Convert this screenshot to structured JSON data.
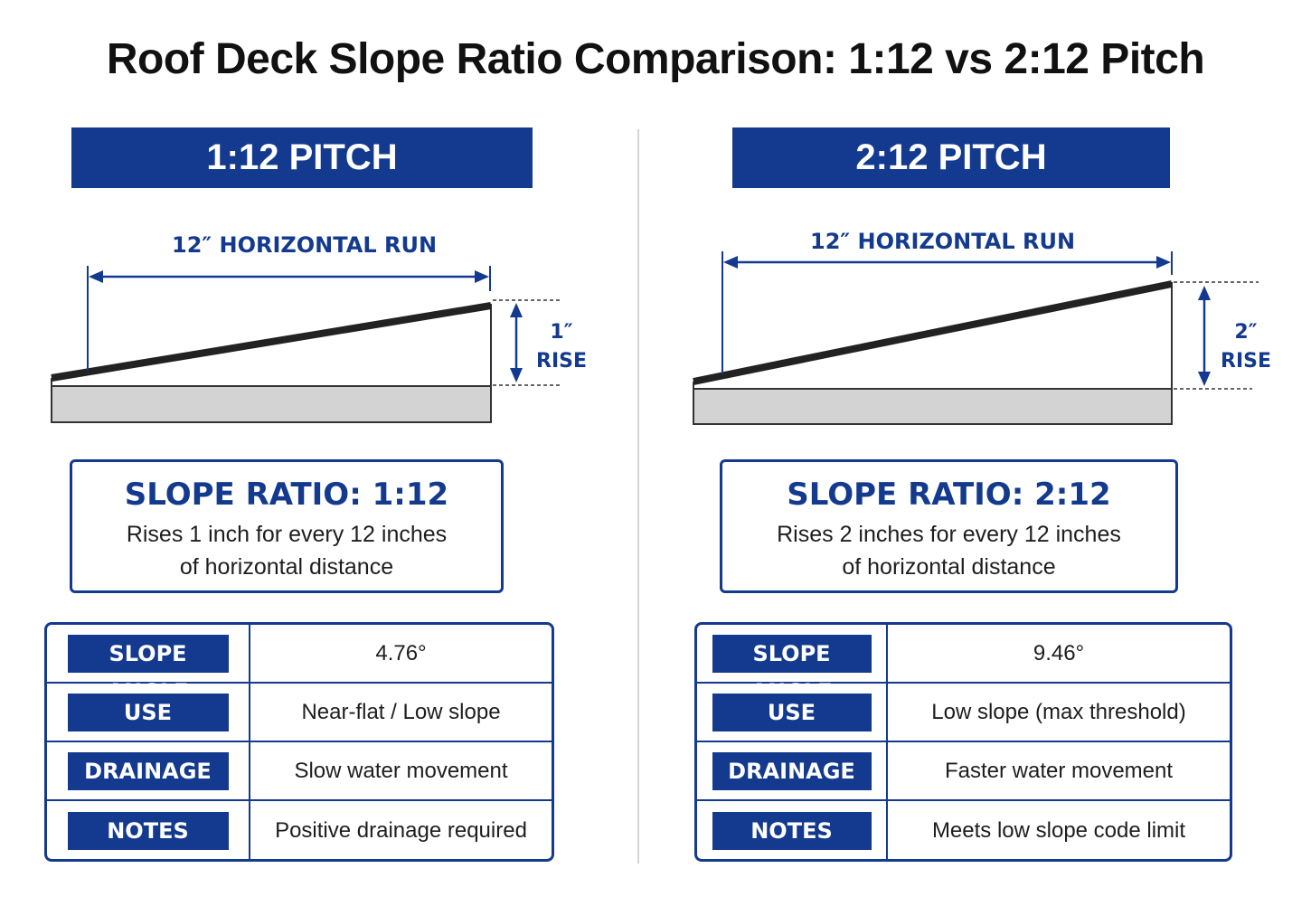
{
  "title": "Roof Deck Slope Ratio Comparison: 1:12 vs 2:12 Pitch",
  "colors": {
    "accent": "#133a8e",
    "base_fill": "#d3d3d3",
    "deck_line": "#222222"
  },
  "panels": [
    {
      "banner": "1:12 PITCH",
      "run_label": "12″ HORIZONTAL RUN",
      "rise_value": "1″",
      "rise_word": "RISE",
      "rise_inches": 1,
      "run_inches": 12,
      "ratio_title": "SLOPE RATIO: 1:12",
      "ratio_desc": "Rises 1 inch for every 12 inches\nof horizontal distance",
      "rows": [
        {
          "key": "SLOPE ANGLE",
          "value": "4.76°"
        },
        {
          "key": "USE",
          "value": "Near-flat / Low slope"
        },
        {
          "key": "DRAINAGE",
          "value": "Slow water movement"
        },
        {
          "key": "NOTES",
          "value": "Positive drainage required"
        }
      ]
    },
    {
      "banner": "2:12 PITCH",
      "run_label": "12″ HORIZONTAL RUN",
      "rise_value": "2″",
      "rise_word": "RISE",
      "rise_inches": 2,
      "run_inches": 12,
      "ratio_title": "SLOPE RATIO: 2:12",
      "ratio_desc": "Rises 2 inches for every 12 inches\nof horizontal distance",
      "rows": [
        {
          "key": "SLOPE ANGLE",
          "value": "9.46°"
        },
        {
          "key": "USE",
          "value": "Low slope (max threshold)"
        },
        {
          "key": "DRAINAGE",
          "value": "Faster water movement"
        },
        {
          "key": "NOTES",
          "value": "Meets low slope code limit"
        }
      ]
    }
  ]
}
